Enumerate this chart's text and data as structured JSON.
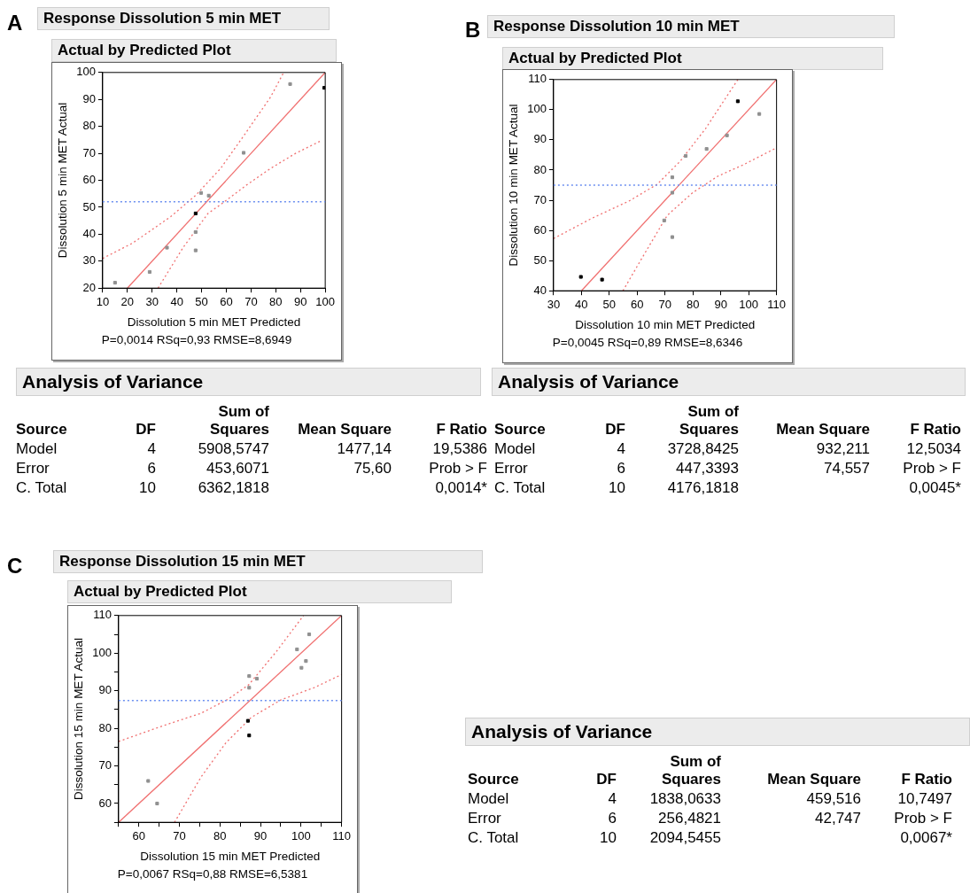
{
  "chart_data": [
    {
      "type": "scatter",
      "title": "Response Dissolution 5 min MET",
      "subtitle": "Actual by Predicted Plot",
      "xlabel": "Dissolution 5 min MET Predicted",
      "ylabel": "Dissolution 5 min MET Actual",
      "annotations": [
        "A",
        "P=0,0014 RSq=0,93 RMSE=8,6949"
      ],
      "xlim": [
        10,
        100
      ],
      "ylim": [
        20,
        100
      ],
      "xticks": [
        10,
        20,
        30,
        40,
        50,
        60,
        70,
        80,
        90,
        100
      ],
      "yticks": [
        20,
        30,
        40,
        50,
        60,
        70,
        80,
        90,
        100
      ],
      "grid": false,
      "legend": false,
      "series": [
        {
          "type": "scatter",
          "marker": "square",
          "x": [
            15,
            29,
            36,
            47.6,
            47.6,
            47.6,
            49.8,
            52.9,
            67,
            85.8,
            99.6
          ],
          "values": [
            22,
            26,
            35,
            47.7,
            40.8,
            34,
            55.3,
            54.3,
            70.2,
            95.7,
            94.3
          ],
          "colors": [
            "#909090",
            "#909090",
            "#909090",
            "#000000",
            "#909090",
            "#909090",
            "#909090",
            "#909090",
            "#909090",
            "#909090",
            "#000000"
          ]
        },
        {
          "type": "line",
          "marker": "none",
          "x": [
            20,
            100
          ],
          "values": [
            20,
            100
          ],
          "color": "#f07070",
          "line_style": "solid"
        },
        {
          "type": "line",
          "marker": "none",
          "x": [
            10,
            22.3,
            37.5,
            47.6,
            57.7,
            67.8,
            77.9,
            83.2
          ],
          "values": [
            31,
            36.8,
            46.5,
            54.4,
            64.4,
            77.5,
            90.9,
            100
          ],
          "color": "#f07070",
          "line_style": "dotted"
        },
        {
          "type": "line",
          "marker": "none",
          "x": [
            32.4,
            42.5,
            52.6,
            59.2,
            67.8,
            77.9,
            88,
            98.6
          ],
          "values": [
            20,
            35,
            47.7,
            52,
            58,
            64.4,
            70,
            74.8
          ],
          "color": "#f07070",
          "line_style": "dotted"
        }
      ],
      "ref_lines": [
        {
          "axis": "y",
          "value": 52,
          "color": "#6b8ff0",
          "line_style": "dotted"
        }
      ]
    },
    {
      "type": "scatter",
      "title": "Response Dissolution 10 min MET",
      "subtitle": "Actual by Predicted Plot",
      "xlabel": "Dissolution 10 min MET Predicted",
      "ylabel": "Dissolution 10 min MET Actual",
      "annotations": [
        "B",
        "P=0,0045 RSq=0,89 RMSE=8,6346"
      ],
      "xlim": [
        30,
        110
      ],
      "ylim": [
        40,
        110
      ],
      "xticks": [
        30,
        40,
        50,
        60,
        70,
        80,
        90,
        100,
        110
      ],
      "yticks": [
        40,
        50,
        60,
        70,
        80,
        90,
        100,
        110
      ],
      "grid": false,
      "legend": false,
      "series": [
        {
          "type": "scatter",
          "marker": "square",
          "x": [
            39.8,
            47.4,
            69.7,
            72.6,
            72.6,
            72.6,
            77.4,
            84.9,
            92.2,
            96.1,
            103.8
          ],
          "values": [
            44.6,
            43.7,
            63.3,
            77.6,
            72.5,
            57.8,
            84.7,
            87,
            91.5,
            102.8,
            98.6
          ],
          "colors": [
            "#000000",
            "#000000",
            "#909090",
            "#909090",
            "#909090",
            "#909090",
            "#909090",
            "#909090",
            "#909090",
            "#000000",
            "#909090"
          ]
        },
        {
          "type": "line",
          "marker": "none",
          "x": [
            40,
            110
          ],
          "values": [
            40,
            110
          ],
          "color": "#f07070",
          "line_style": "solid"
        },
        {
          "type": "line",
          "marker": "none",
          "x": [
            30,
            43.5,
            57.2,
            67.2,
            75.4,
            84.5,
            96.1
          ],
          "values": [
            57.3,
            63.9,
            69.8,
            75.3,
            82.9,
            93.7,
            110
          ],
          "color": "#f07070",
          "line_style": "dotted"
        },
        {
          "type": "line",
          "marker": "none",
          "x": [
            54.9,
            61.7,
            70.8,
            79.9,
            89,
            98.2,
            110
          ],
          "values": [
            40,
            50.8,
            65,
            72.5,
            78,
            81.8,
            87.4
          ],
          "color": "#f07070",
          "line_style": "dotted"
        }
      ],
      "ref_lines": [
        {
          "axis": "y",
          "value": 75,
          "color": "#6b8ff0",
          "line_style": "dotted"
        }
      ]
    },
    {
      "type": "other",
      "title": "Analysis of Variance",
      "annotations": [
        "Source",
        "DF",
        "Sum of Squares",
        "Mean Square",
        "F Ratio",
        "Model",
        "4",
        "5908,5747",
        "1477,14",
        "19,5386",
        "Error",
        "6",
        "453,6071",
        "75,60",
        "Prob > F",
        "C. Total",
        "10",
        "6362,1818",
        null,
        "0,0014*"
      ]
    },
    {
      "type": "other",
      "title": "Analysis of Variance",
      "annotations": [
        "Source",
        "DF",
        "Sum of Squares",
        "Mean Square",
        "F Ratio",
        "Model",
        "4",
        "3728,8425",
        "932,211",
        "12,5034",
        "Error",
        "6",
        "447,3393",
        "74,557",
        "Prob > F",
        "C. Total",
        "10",
        "4176,1818",
        null,
        "0,0045*"
      ]
    },
    {
      "type": "scatter",
      "title": "Response Dissolution 15 min MET",
      "subtitle": "Actual by Predicted Plot",
      "xlabel": "Dissolution 15 min MET Predicted",
      "ylabel": "Dissolution 15 min MET Actual",
      "annotations": [
        "C",
        "P=0,0067 RSq=0,88 RMSE=6,5381"
      ],
      "xlim": [
        55,
        110
      ],
      "ylim": [
        55,
        110
      ],
      "xticks": [
        {
          "value": 55,
          "label": null
        },
        60,
        {
          "value": 65,
          "label": null
        },
        70,
        {
          "value": 75,
          "label": null
        },
        80,
        {
          "value": 85,
          "label": null
        },
        90,
        {
          "value": 95,
          "label": null
        },
        100,
        {
          "value": 105,
          "label": null
        },
        110
      ],
      "yticks": [
        {
          "value": 55,
          "label": null
        },
        60,
        {
          "value": 65,
          "label": null
        },
        70,
        {
          "value": 75,
          "label": null
        },
        80,
        {
          "value": 85,
          "label": null
        },
        90,
        {
          "value": 95,
          "label": null
        },
        100,
        {
          "value": 105,
          "label": null
        },
        110
      ],
      "grid": false,
      "legend": false,
      "series": [
        {
          "type": "scatter",
          "marker": "square",
          "x": [
            62.3,
            64.5,
            86.9,
            87.2,
            87.2,
            87.2,
            89.1,
            99,
            100.1,
            101.2,
            102
          ],
          "values": [
            66,
            60,
            82,
            78.1,
            93.9,
            90.8,
            93.2,
            101,
            96.1,
            97.9,
            105
          ],
          "colors": [
            "#909090",
            "#909090",
            "#000000",
            "#000000",
            "#909090",
            "#909090",
            "#909090",
            "#909090",
            "#909090",
            "#909090",
            "#909090"
          ]
        },
        {
          "type": "line",
          "marker": "none",
          "x": [
            55,
            110
          ],
          "values": [
            55,
            110
          ],
          "color": "#f07070",
          "line_style": "solid"
        },
        {
          "type": "line",
          "marker": "none",
          "x": [
            55,
            66,
            75.3,
            82.1,
            87.1,
            93.9,
            100.6
          ],
          "values": [
            76.5,
            80.7,
            84,
            87.8,
            91.6,
            100.4,
            110
          ],
          "color": "#f07070",
          "line_style": "dotted"
        },
        {
          "type": "line",
          "marker": "none",
          "x": [
            68.8,
            75.3,
            81.5,
            87.7,
            95.1,
            103.2,
            110
          ],
          "values": [
            55,
            67,
            76.2,
            82.9,
            87.6,
            90.8,
            94.3
          ],
          "color": "#f07070",
          "line_style": "dotted"
        }
      ],
      "ref_lines": [
        {
          "axis": "y",
          "value": 87.4,
          "color": "#6b8ff0",
          "line_style": "dotted"
        }
      ]
    },
    {
      "type": "other",
      "title": "Analysis of Variance",
      "annotations": [
        "Source",
        "DF",
        "Sum of Squares",
        "Mean Square",
        "F Ratio",
        "Model",
        "4",
        "1838,0633",
        "459,516",
        "10,7497",
        "Error",
        "6",
        "256,4821",
        "42,747",
        "Prob > F",
        "C. Total",
        "10",
        "2094,5455",
        null,
        "0,0067*"
      ]
    }
  ]
}
